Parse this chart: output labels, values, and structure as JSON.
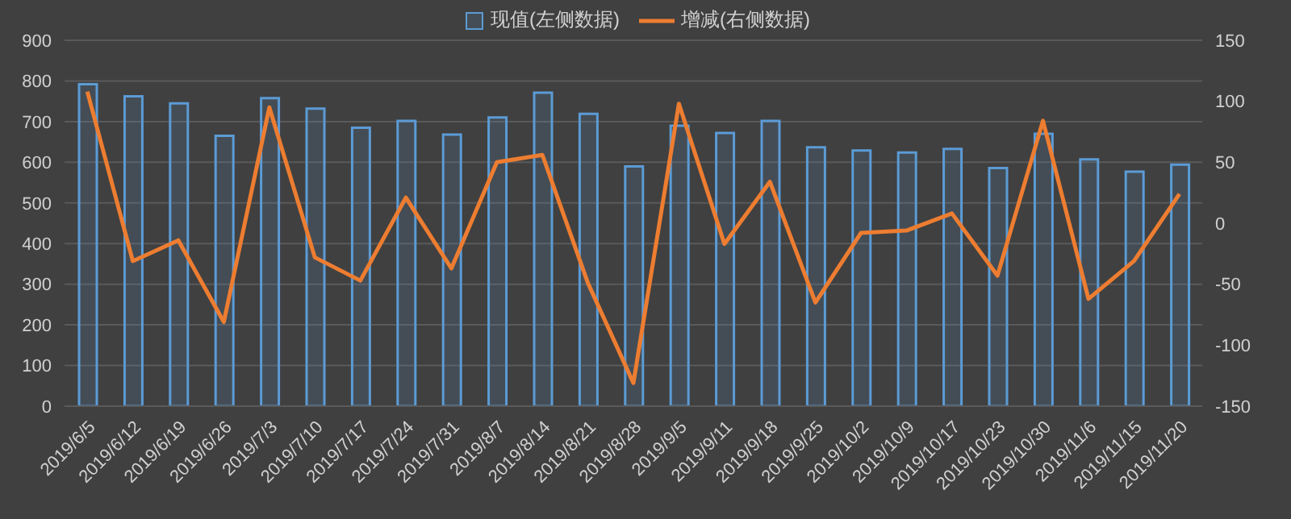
{
  "chart_data": {
    "type": "bar",
    "categories": [
      "2019/6/5",
      "2019/6/12",
      "2019/6/19",
      "2019/6/26",
      "2019/7/3",
      "2019/7/10",
      "2019/7/17",
      "2019/7/24",
      "2019/7/31",
      "2019/8/7",
      "2019/8/14",
      "2019/8/21",
      "2019/8/28",
      "2019/9/5",
      "2019/9/11",
      "2019/9/18",
      "2019/9/25",
      "2019/10/2",
      "2019/10/9",
      "2019/10/17",
      "2019/10/23",
      "2019/10/30",
      "2019/11/6",
      "2019/11/15",
      "2019/11/20"
    ],
    "series": [
      {
        "name": "现值(左侧数据)",
        "color": "#5b9bd5",
        "values": [
          792,
          762,
          745,
          665,
          758,
          732,
          685,
          702,
          668,
          710,
          771,
          719,
          590,
          690,
          672,
          702,
          637,
          629,
          624,
          633,
          586,
          670,
          607,
          577,
          594
        ]
      },
      {
        "name": "增减(右侧数据)",
        "type": "line",
        "axis": "y2",
        "color": "#ed7d31",
        "values": [
          108,
          -31,
          -14,
          -81,
          95,
          -28,
          -47,
          21,
          -37,
          50,
          56,
          -49,
          -131,
          98,
          -17,
          34,
          -65,
          -8,
          -6,
          8,
          -43,
          84,
          -62,
          -31,
          24
        ]
      }
    ],
    "ylim": [
      0,
      900
    ],
    "yticks": [
      0,
      100,
      200,
      300,
      400,
      500,
      600,
      700,
      800,
      900
    ],
    "y2lim": [
      -150,
      150
    ],
    "y2ticks": [
      -150,
      -100,
      -50,
      0,
      50,
      100,
      150
    ],
    "grid": "y",
    "legend": "top",
    "marker": "none",
    "line_style": "solid"
  }
}
